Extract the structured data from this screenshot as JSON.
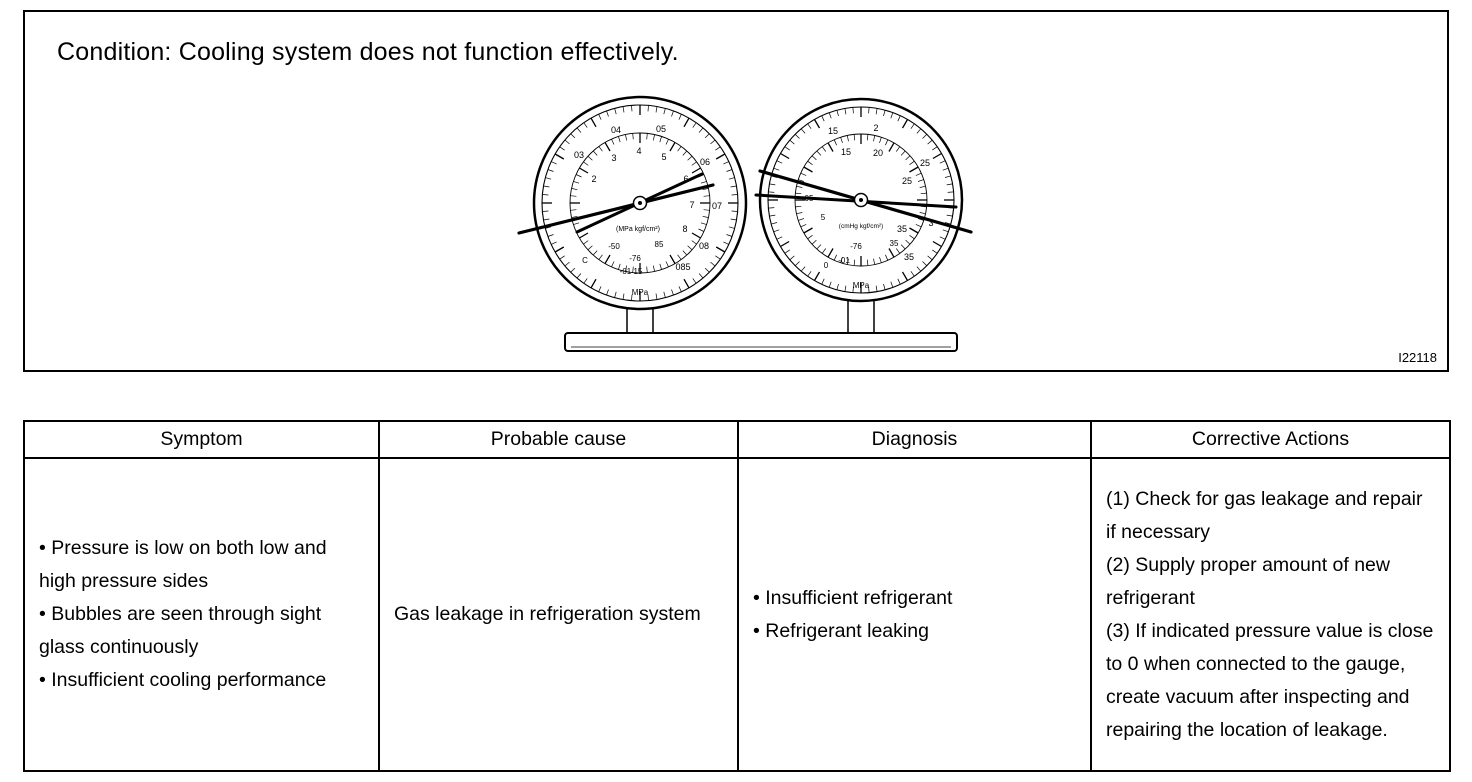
{
  "figure": {
    "condition": "Condition: Cooling system does not function effectively.",
    "figure_id": "I22118",
    "gauges": {
      "left": {
        "outer_scale": [
          "03",
          "04",
          "05",
          "06",
          "07",
          "08",
          "085"
        ],
        "inner_scale": [
          "2",
          "3",
          "4",
          "5",
          "6",
          "7",
          "8"
        ],
        "center_label": "(MPa kgf/cm²)",
        "neg50": "-50",
        "v85": "85",
        "neg76": "-76",
        "low_scale": "-01 15",
        "c_label": "C",
        "unit": "MPa"
      },
      "right": {
        "outer_scale": [
          "15",
          "2",
          "25",
          "3",
          "35"
        ],
        "inner_scale": [
          "15",
          "20",
          "25",
          "35"
        ],
        "center_label": "(cmHg kgf/cm²)",
        "v05": "05",
        "v5": "5",
        "v35": "35",
        "neg76": "-76",
        "neg01": "-01",
        "zero": "0",
        "unit": "MPa"
      }
    }
  },
  "table": {
    "headers": [
      "Symptom",
      "Probable cause",
      "Diagnosis",
      "Corrective Actions"
    ],
    "rows": [
      {
        "symptom": [
          "• Pressure is low on both low and high pressure sides",
          "• Bubbles are seen through sight glass continuously",
          "• Insufficient cooling performance"
        ],
        "probable_cause": "Gas leakage in refrigeration system",
        "diagnosis": [
          "• Insufficient refrigerant",
          "• Refrigerant leaking"
        ],
        "corrective_actions": [
          "(1) Check for gas leakage and repair if necessary",
          "(2) Supply proper amount of new refrigerant",
          "(3) If indicated pressure value is close to 0 when connected to the gauge, create vacuum after inspecting and repairing the location of leakage."
        ]
      }
    ]
  }
}
